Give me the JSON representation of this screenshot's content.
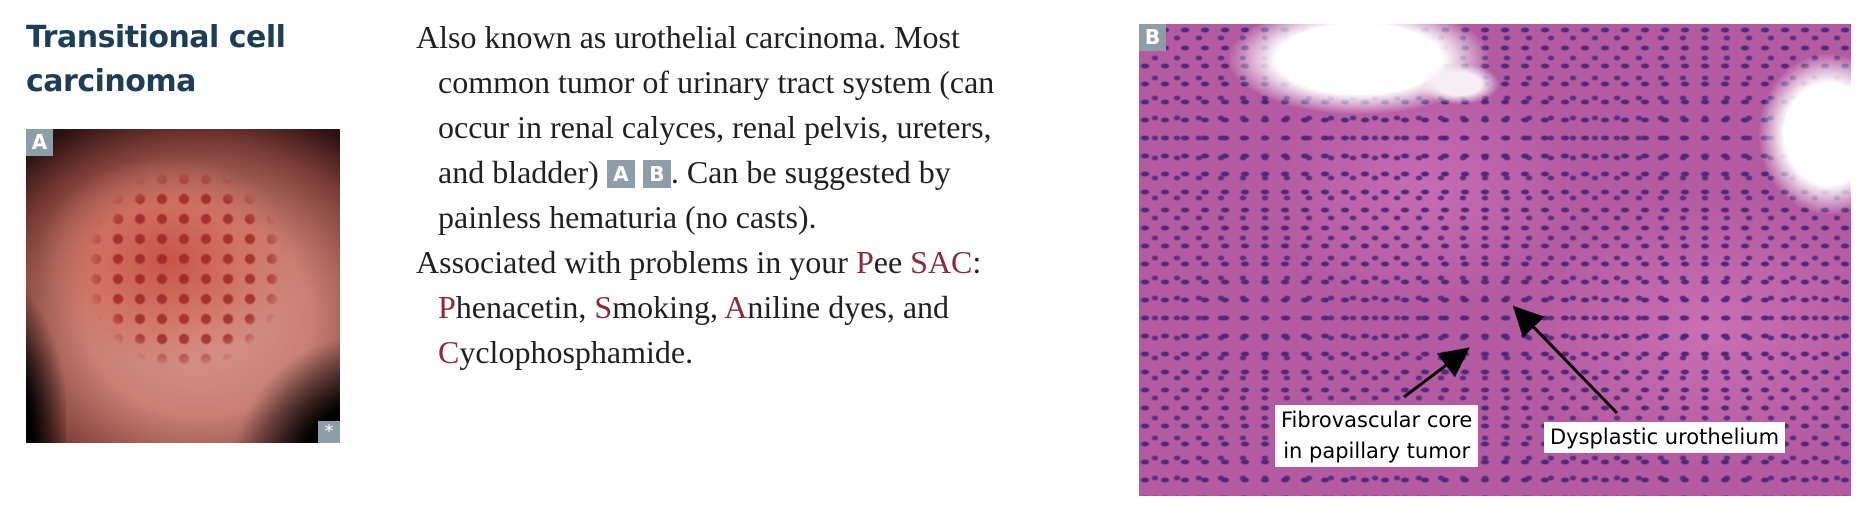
{
  "heading": {
    "line1": "Transitional cell",
    "line2": "carcinoma"
  },
  "figure_a": {
    "label": "A",
    "corner_mark": "*"
  },
  "text": {
    "para1": {
      "l1": "Also known as urothelial carcinoma. Most",
      "l2": "common tumor of urinary tract system (can",
      "l3": "occur in renal calyces, renal pelvis, ureters,",
      "l4_before": "and bladder) ",
      "ref_a": "A",
      "ref_b": "B",
      "l4_after": ". Can be suggested by",
      "l5": "painless hematuria (no casts)."
    },
    "para2": {
      "l1_before": "Associated with problems in your ",
      "P": "P",
      "ee": "ee ",
      "SAC": "SAC",
      "colon": ":",
      "P2": "P",
      "henacetin": "henacetin, ",
      "S": "S",
      "moking": "moking, ",
      "A": "A",
      "niline": "niline dyes, and",
      "C": "C",
      "yclo": "yclophosphamide."
    }
  },
  "figure_b": {
    "label": "B",
    "callout1": {
      "l1": "Fibrovascular core",
      "l2": "in papillary tumor"
    },
    "callout2": "Dysplastic urothelium"
  },
  "colors": {
    "heading": "#1d3e57",
    "highlight": "#8e2a3a",
    "label_box": "#8e9ea8"
  }
}
